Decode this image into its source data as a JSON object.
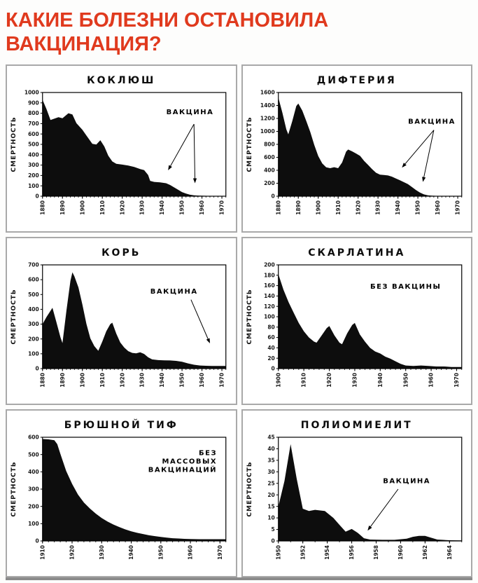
{
  "header": {
    "title": "КАКИЕ БОЛЕЗНИ ОСТАНОВИЛА ВАКЦИНАЦИЯ?",
    "accent_color": "#e03a1e"
  },
  "chart_data": [
    {
      "type": "area",
      "title": "КОКЛЮШ",
      "ylabel": "СМЕРТНОСТЬ",
      "xlim": [
        1880,
        1972
      ],
      "ylim": [
        0,
        1000
      ],
      "ytick_step": 100,
      "xticks": [
        1880,
        1890,
        1900,
        1910,
        1920,
        1930,
        1940,
        1950,
        1960,
        1970
      ],
      "xtick_minor_step": 2,
      "fill_color": "#0d0d0d",
      "points": [
        [
          1880,
          930
        ],
        [
          1882,
          840
        ],
        [
          1884,
          735
        ],
        [
          1886,
          748
        ],
        [
          1888,
          762
        ],
        [
          1890,
          752
        ],
        [
          1893,
          800
        ],
        [
          1895,
          788
        ],
        [
          1897,
          705
        ],
        [
          1900,
          640
        ],
        [
          1902,
          585
        ],
        [
          1905,
          505
        ],
        [
          1907,
          498
        ],
        [
          1909,
          540
        ],
        [
          1911,
          480
        ],
        [
          1913,
          390
        ],
        [
          1915,
          335
        ],
        [
          1917,
          312
        ],
        [
          1920,
          305
        ],
        [
          1923,
          296
        ],
        [
          1926,
          282
        ],
        [
          1929,
          262
        ],
        [
          1931,
          252
        ],
        [
          1933,
          205
        ],
        [
          1934,
          148
        ],
        [
          1936,
          138
        ],
        [
          1939,
          133
        ],
        [
          1942,
          125
        ],
        [
          1944,
          108
        ],
        [
          1946,
          85
        ],
        [
          1948,
          62
        ],
        [
          1950,
          40
        ],
        [
          1952,
          25
        ],
        [
          1954,
          14
        ],
        [
          1956,
          9
        ],
        [
          1958,
          6
        ],
        [
          1961,
          4
        ],
        [
          1964,
          3
        ],
        [
          1967,
          2
        ],
        [
          1972,
          2
        ]
      ],
      "annotation": {
        "lines": [
          "ВАКЦИНА"
        ],
        "pos": [
          1954,
          810
        ],
        "align": "middle",
        "arrows": [
          {
            "from": [
              1956,
              695
            ],
            "to": [
              1943,
              250
            ]
          },
          {
            "from": [
              1956,
              695
            ],
            "to": [
              1956.5,
              125
            ]
          }
        ]
      }
    },
    {
      "type": "area",
      "title": "ДИФТЕРИЯ",
      "ylabel": "СМЕРТНОСТЬ",
      "xlim": [
        1880,
        1972
      ],
      "ylim": [
        0,
        1600
      ],
      "ytick_step": 200,
      "xticks": [
        1880,
        1890,
        1900,
        1910,
        1920,
        1930,
        1940,
        1950,
        1960,
        1970
      ],
      "xtick_minor_step": 2,
      "fill_color": "#0d0d0d",
      "points": [
        [
          1880,
          1520
        ],
        [
          1882,
          1290
        ],
        [
          1884,
          1030
        ],
        [
          1885,
          955
        ],
        [
          1887,
          1160
        ],
        [
          1889,
          1390
        ],
        [
          1890,
          1430
        ],
        [
          1892,
          1320
        ],
        [
          1894,
          1160
        ],
        [
          1896,
          990
        ],
        [
          1898,
          790
        ],
        [
          1900,
          620
        ],
        [
          1902,
          505
        ],
        [
          1904,
          445
        ],
        [
          1906,
          432
        ],
        [
          1908,
          448
        ],
        [
          1910,
          432
        ],
        [
          1912,
          520
        ],
        [
          1914,
          688
        ],
        [
          1915,
          720
        ],
        [
          1917,
          692
        ],
        [
          1919,
          658
        ],
        [
          1921,
          622
        ],
        [
          1923,
          545
        ],
        [
          1925,
          482
        ],
        [
          1927,
          420
        ],
        [
          1929,
          362
        ],
        [
          1931,
          332
        ],
        [
          1933,
          326
        ],
        [
          1935,
          320
        ],
        [
          1937,
          302
        ],
        [
          1939,
          272
        ],
        [
          1941,
          246
        ],
        [
          1943,
          216
        ],
        [
          1945,
          186
        ],
        [
          1947,
          142
        ],
        [
          1949,
          96
        ],
        [
          1951,
          56
        ],
        [
          1953,
          28
        ],
        [
          1955,
          14
        ],
        [
          1957,
          8
        ],
        [
          1959,
          5
        ],
        [
          1962,
          3
        ],
        [
          1966,
          2
        ],
        [
          1972,
          2
        ]
      ],
      "annotation": {
        "lines": [
          "ВАКЦИНА"
        ],
        "pos": [
          1957,
          1150
        ],
        "align": "middle",
        "arrows": [
          {
            "from": [
              1958,
              1020
            ],
            "to": [
              1942,
              440
            ]
          },
          {
            "from": [
              1958,
              1020
            ],
            "to": [
              1952.5,
              220
            ]
          }
        ]
      }
    },
    {
      "type": "area",
      "title": "КОРЬ",
      "ylabel": "СМЕРТНОСТЬ",
      "xlim": [
        1880,
        1972
      ],
      "ylim": [
        0,
        700
      ],
      "ytick_step": 100,
      "xticks": [
        1880,
        1890,
        1900,
        1910,
        1920,
        1930,
        1940,
        1950,
        1960,
        1970
      ],
      "xtick_minor_step": 2,
      "fill_color": "#0d0d0d",
      "points": [
        [
          1880,
          300
        ],
        [
          1882,
          348
        ],
        [
          1885,
          410
        ],
        [
          1887,
          312
        ],
        [
          1889,
          212
        ],
        [
          1890,
          172
        ],
        [
          1892,
          392
        ],
        [
          1894,
          592
        ],
        [
          1895,
          650
        ],
        [
          1896,
          622
        ],
        [
          1898,
          548
        ],
        [
          1900,
          432
        ],
        [
          1902,
          302
        ],
        [
          1904,
          205
        ],
        [
          1906,
          152
        ],
        [
          1908,
          120
        ],
        [
          1910,
          182
        ],
        [
          1912,
          252
        ],
        [
          1914,
          300
        ],
        [
          1915,
          310
        ],
        [
          1917,
          236
        ],
        [
          1919,
          176
        ],
        [
          1921,
          142
        ],
        [
          1923,
          118
        ],
        [
          1925,
          106
        ],
        [
          1927,
          103
        ],
        [
          1929,
          110
        ],
        [
          1931,
          99
        ],
        [
          1933,
          76
        ],
        [
          1935,
          62
        ],
        [
          1938,
          57
        ],
        [
          1941,
          56
        ],
        [
          1944,
          55
        ],
        [
          1947,
          52
        ],
        [
          1950,
          46
        ],
        [
          1953,
          35
        ],
        [
          1956,
          26
        ],
        [
          1959,
          21
        ],
        [
          1962,
          19
        ],
        [
          1965,
          18
        ],
        [
          1972,
          18
        ]
      ],
      "annotation": {
        "lines": [
          "ВАКЦИНА"
        ],
        "pos": [
          1946,
          520
        ],
        "align": "middle",
        "arrows": [
          {
            "from": [
              1954.5,
              465
            ],
            "to": [
              1964,
              170
            ]
          }
        ]
      }
    },
    {
      "type": "area",
      "title": "СКАРЛАТИНА",
      "ylabel": "СМЕРТНОСТЬ",
      "xlim": [
        1900,
        1972
      ],
      "ylim": [
        0,
        200
      ],
      "ytick_step": 20,
      "xticks": [
        1900,
        1910,
        1920,
        1930,
        1940,
        1950,
        1960,
        1970
      ],
      "xtick_minor_step": 2,
      "fill_color": "#0d0d0d",
      "points": [
        [
          1900,
          182
        ],
        [
          1902,
          152
        ],
        [
          1904,
          128
        ],
        [
          1906,
          108
        ],
        [
          1908,
          88
        ],
        [
          1910,
          72
        ],
        [
          1912,
          60
        ],
        [
          1914,
          52
        ],
        [
          1915,
          50
        ],
        [
          1917,
          64
        ],
        [
          1919,
          78
        ],
        [
          1920,
          82
        ],
        [
          1922,
          64
        ],
        [
          1924,
          50
        ],
        [
          1925,
          47
        ],
        [
          1927,
          68
        ],
        [
          1929,
          84
        ],
        [
          1930,
          88
        ],
        [
          1932,
          66
        ],
        [
          1934,
          52
        ],
        [
          1936,
          40
        ],
        [
          1938,
          33
        ],
        [
          1940,
          29
        ],
        [
          1942,
          23
        ],
        [
          1944,
          19
        ],
        [
          1946,
          14
        ],
        [
          1948,
          9
        ],
        [
          1950,
          6
        ],
        [
          1953,
          5
        ],
        [
          1956,
          6
        ],
        [
          1959,
          5
        ],
        [
          1962,
          4
        ],
        [
          1965,
          4
        ],
        [
          1968,
          3
        ],
        [
          1972,
          3
        ]
      ],
      "annotation": {
        "lines": [
          "БЕЗ ВАКЦИНЫ"
        ],
        "pos": [
          1950,
          158
        ],
        "align": "middle",
        "arrows": []
      }
    },
    {
      "type": "area",
      "title": "БРЮШНОЙ ТИФ",
      "ylabel": "СМЕРТНОСТЬ",
      "xlim": [
        1910,
        1972
      ],
      "ylim": [
        0,
        600
      ],
      "ytick_step": 100,
      "xticks": [
        1910,
        1920,
        1930,
        1940,
        1950,
        1960,
        1970
      ],
      "xtick_minor_step": 2,
      "fill_color": "#0d0d0d",
      "points": [
        [
          1910,
          590
        ],
        [
          1912,
          588
        ],
        [
          1914,
          583
        ],
        [
          1915,
          560
        ],
        [
          1916,
          505
        ],
        [
          1918,
          405
        ],
        [
          1920,
          330
        ],
        [
          1922,
          268
        ],
        [
          1924,
          222
        ],
        [
          1926,
          188
        ],
        [
          1928,
          158
        ],
        [
          1930,
          133
        ],
        [
          1932,
          112
        ],
        [
          1934,
          95
        ],
        [
          1936,
          80
        ],
        [
          1938,
          67
        ],
        [
          1940,
          56
        ],
        [
          1942,
          47
        ],
        [
          1944,
          40
        ],
        [
          1946,
          33
        ],
        [
          1948,
          28
        ],
        [
          1950,
          23
        ],
        [
          1952,
          19
        ],
        [
          1954,
          16
        ],
        [
          1956,
          14
        ],
        [
          1958,
          12
        ],
        [
          1960,
          11
        ],
        [
          1963,
          10
        ],
        [
          1967,
          10
        ],
        [
          1972,
          10
        ]
      ],
      "annotation": {
        "lines": [
          "БЕЗ",
          "МАССОВЫХ",
          "ВАКЦИНАЦИЙ"
        ],
        "pos": [
          1969,
          460
        ],
        "align": "end",
        "arrows": []
      }
    },
    {
      "type": "area",
      "title": "ПОЛИОМИЕЛИТ",
      "ylabel": "СМЕРТНОСТЬ",
      "xlim": [
        1950,
        1965
      ],
      "ylim": [
        0,
        45
      ],
      "ytick_step": 5,
      "xticks": [
        1950,
        1952,
        1954,
        1956,
        1958,
        1960,
        1962,
        1964
      ],
      "xtick_minor_step": 1,
      "fill_color": "#0d0d0d",
      "points": [
        [
          1950,
          15
        ],
        [
          1950.5,
          26
        ],
        [
          1951,
          42
        ],
        [
          1951.5,
          27
        ],
        [
          1952,
          14
        ],
        [
          1952.5,
          13
        ],
        [
          1953,
          13.5
        ],
        [
          1953.8,
          13
        ],
        [
          1954.5,
          10
        ],
        [
          1955,
          7
        ],
        [
          1955.5,
          4
        ],
        [
          1956,
          5.2
        ],
        [
          1956.5,
          3.5
        ],
        [
          1957,
          1.2
        ],
        [
          1957.5,
          0.6
        ],
        [
          1958.5,
          0.5
        ],
        [
          1959.5,
          0.5
        ],
        [
          1960.5,
          1
        ],
        [
          1961,
          1.8
        ],
        [
          1961.5,
          2.2
        ],
        [
          1962,
          2.2
        ],
        [
          1962.5,
          1.4
        ],
        [
          1963,
          0.6
        ],
        [
          1964,
          0.3
        ],
        [
          1965,
          0.2
        ]
      ],
      "annotation": {
        "lines": [
          "ВАКЦИНА"
        ],
        "pos": [
          1960.5,
          26
        ],
        "align": "middle",
        "arrows": [
          {
            "from": [
              1959.8,
              22.5
            ],
            "to": [
              1957.3,
              4.5
            ]
          }
        ]
      }
    }
  ]
}
